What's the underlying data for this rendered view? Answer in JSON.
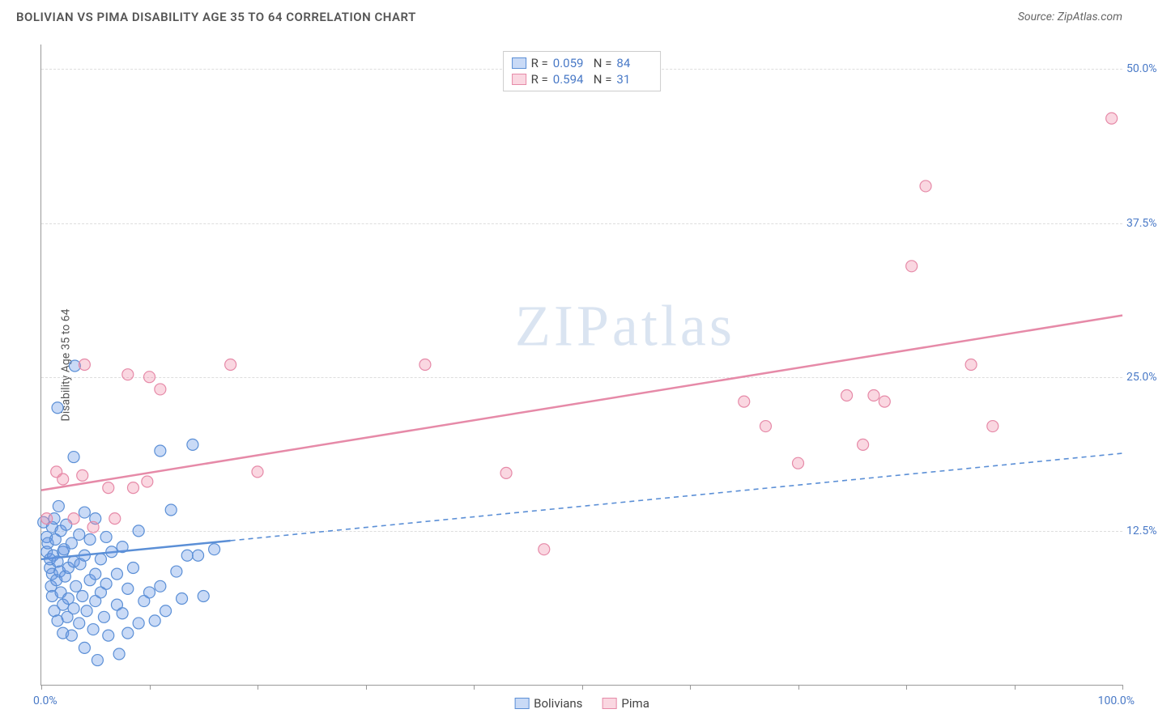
{
  "title": "BOLIVIAN VS PIMA DISABILITY AGE 35 TO 64 CORRELATION CHART",
  "source_label": "Source: ",
  "source_name": "ZipAtlas.com",
  "ylabel": "Disability Age 35 to 64",
  "watermark_bold": "ZIP",
  "watermark_thin": "atlas",
  "chart": {
    "type": "scatter",
    "xlim": [
      0,
      100
    ],
    "ylim": [
      0,
      52
    ],
    "xticks": [
      0,
      10,
      20,
      30,
      40,
      50,
      60,
      70,
      80,
      90,
      100
    ],
    "yticks": [
      12.5,
      25.0,
      37.5,
      50.0
    ],
    "ytick_labels": [
      "12.5%",
      "25.0%",
      "37.5%",
      "50.0%"
    ],
    "xlabel_min": "0.0%",
    "xlabel_max": "100.0%",
    "grid_color": "#dddddd",
    "axis_color": "#999999",
    "background_color": "#ffffff",
    "marker_radius": 7,
    "marker_stroke_width": 1.2,
    "regression_line_width": 2.5,
    "series": [
      {
        "name": "Bolivians",
        "fill_color": "rgba(100,150,230,0.35)",
        "stroke_color": "#5b8fd6",
        "stat_r": "0.059",
        "stat_n": "84",
        "regression": {
          "y_at_x0": 10.2,
          "y_at_x100": 18.8,
          "solid_until_x": 17.5,
          "dash": "6 5"
        },
        "points": [
          [
            0.2,
            13.2
          ],
          [
            0.5,
            12.0
          ],
          [
            0.5,
            10.8
          ],
          [
            0.6,
            11.5
          ],
          [
            0.8,
            9.5
          ],
          [
            0.8,
            10.2
          ],
          [
            0.9,
            8.0
          ],
          [
            1.0,
            12.8
          ],
          [
            1.0,
            7.2
          ],
          [
            1.0,
            9.0
          ],
          [
            1.1,
            10.5
          ],
          [
            1.2,
            13.5
          ],
          [
            1.2,
            6.0
          ],
          [
            1.3,
            11.8
          ],
          [
            1.4,
            8.5
          ],
          [
            1.5,
            22.5
          ],
          [
            1.5,
            10.0
          ],
          [
            1.5,
            5.2
          ],
          [
            1.6,
            14.5
          ],
          [
            1.7,
            9.2
          ],
          [
            1.8,
            7.5
          ],
          [
            1.8,
            12.5
          ],
          [
            2.0,
            10.8
          ],
          [
            2.0,
            6.5
          ],
          [
            2.0,
            4.2
          ],
          [
            2.1,
            11.0
          ],
          [
            2.2,
            8.8
          ],
          [
            2.3,
            13.0
          ],
          [
            2.4,
            5.5
          ],
          [
            2.5,
            9.5
          ],
          [
            2.5,
            7.0
          ],
          [
            2.8,
            11.5
          ],
          [
            2.8,
            4.0
          ],
          [
            3.0,
            18.5
          ],
          [
            3.0,
            10.0
          ],
          [
            3.0,
            6.2
          ],
          [
            3.1,
            25.9
          ],
          [
            3.2,
            8.0
          ],
          [
            3.5,
            12.2
          ],
          [
            3.5,
            5.0
          ],
          [
            3.6,
            9.8
          ],
          [
            3.8,
            7.2
          ],
          [
            4.0,
            14.0
          ],
          [
            4.0,
            10.5
          ],
          [
            4.0,
            3.0
          ],
          [
            4.2,
            6.0
          ],
          [
            4.5,
            11.8
          ],
          [
            4.5,
            8.5
          ],
          [
            4.8,
            4.5
          ],
          [
            5.0,
            13.5
          ],
          [
            5.0,
            9.0
          ],
          [
            5.0,
            6.8
          ],
          [
            5.2,
            2.0
          ],
          [
            5.5,
            10.2
          ],
          [
            5.5,
            7.5
          ],
          [
            5.8,
            5.5
          ],
          [
            6.0,
            12.0
          ],
          [
            6.0,
            8.2
          ],
          [
            6.2,
            4.0
          ],
          [
            6.5,
            10.8
          ],
          [
            7.0,
            9.0
          ],
          [
            7.0,
            6.5
          ],
          [
            7.2,
            2.5
          ],
          [
            7.5,
            11.2
          ],
          [
            7.5,
            5.8
          ],
          [
            8.0,
            7.8
          ],
          [
            8.0,
            4.2
          ],
          [
            8.5,
            9.5
          ],
          [
            9.0,
            5.0
          ],
          [
            9.0,
            12.5
          ],
          [
            9.5,
            6.8
          ],
          [
            10.0,
            7.5
          ],
          [
            10.5,
            5.2
          ],
          [
            11.0,
            19.0
          ],
          [
            11.0,
            8.0
          ],
          [
            11.5,
            6.0
          ],
          [
            12.0,
            14.2
          ],
          [
            12.5,
            9.2
          ],
          [
            13.0,
            7.0
          ],
          [
            13.5,
            10.5
          ],
          [
            14.0,
            19.5
          ],
          [
            14.5,
            10.5
          ],
          [
            15.0,
            7.2
          ],
          [
            16.0,
            11.0
          ]
        ]
      },
      {
        "name": "Pima",
        "fill_color": "rgba(240,140,170,0.35)",
        "stroke_color": "#e68aa8",
        "stat_r": "0.594",
        "stat_n": "31",
        "regression": {
          "y_at_x0": 15.8,
          "y_at_x100": 30.0,
          "solid_until_x": 100,
          "dash": ""
        },
        "points": [
          [
            0.5,
            13.5
          ],
          [
            1.4,
            17.3
          ],
          [
            2,
            16.7
          ],
          [
            3.0,
            13.5
          ],
          [
            3.8,
            17.0
          ],
          [
            4.0,
            26.0
          ],
          [
            4.8,
            12.8
          ],
          [
            6.2,
            16.0
          ],
          [
            6.8,
            13.5
          ],
          [
            8.0,
            25.2
          ],
          [
            8.5,
            16.0
          ],
          [
            9.8,
            16.5
          ],
          [
            10.0,
            25.0
          ],
          [
            11.0,
            24.0
          ],
          [
            17.5,
            26.0
          ],
          [
            35.5,
            26.0
          ],
          [
            46.5,
            11.0
          ],
          [
            65.0,
            23.0
          ],
          [
            67.0,
            21.0
          ],
          [
            70.0,
            18.0
          ],
          [
            74.5,
            23.5
          ],
          [
            76.0,
            19.5
          ],
          [
            77.0,
            23.5
          ],
          [
            78.0,
            23.0
          ],
          [
            80.5,
            34.0
          ],
          [
            81.8,
            40.5
          ],
          [
            86.0,
            26.0
          ],
          [
            88.0,
            21.0
          ],
          [
            99.0,
            46.0
          ],
          [
            43,
            17.2
          ],
          [
            20,
            17.3
          ]
        ]
      }
    ]
  },
  "top_legend_labels": {
    "R": "R =",
    "N": "N ="
  },
  "bottom_legend": [
    "Bolivians",
    "Pima"
  ]
}
